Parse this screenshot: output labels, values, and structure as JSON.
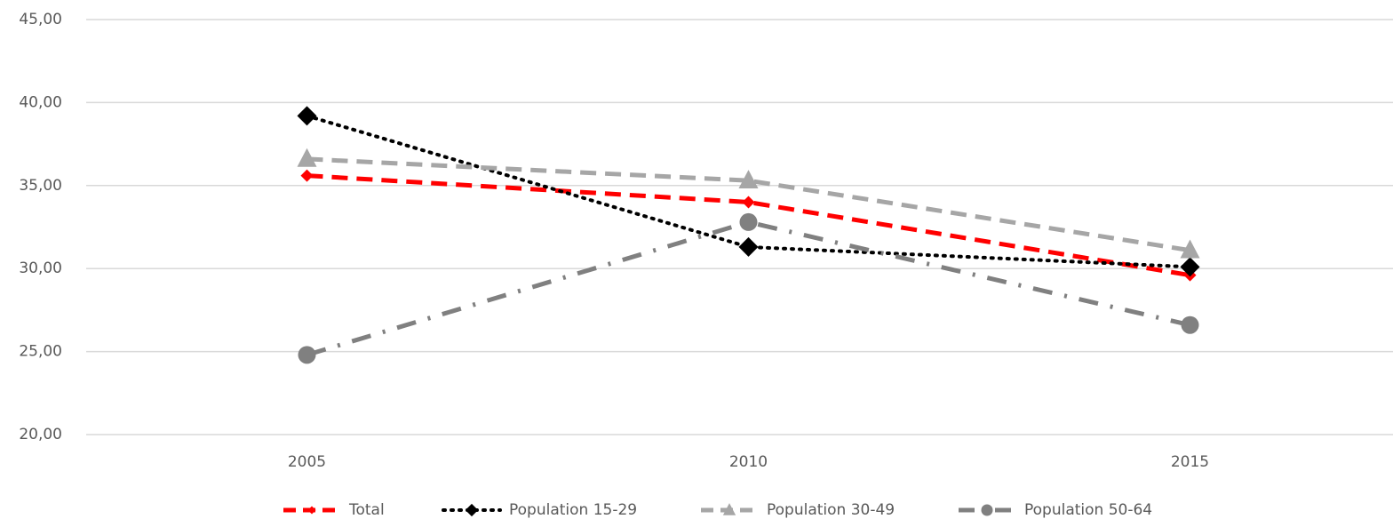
{
  "chart_data": {
    "type": "line",
    "categories": [
      "2005",
      "2010",
      "2015"
    ],
    "series": [
      {
        "name": "Total",
        "color": "#ff0000",
        "line_style": "dashed",
        "marker": "diamond",
        "values": [
          35.6,
          34.0,
          29.6
        ]
      },
      {
        "name": "Population 15-29",
        "color": "#000000",
        "line_style": "dotted",
        "marker": "diamond",
        "values": [
          39.2,
          31.3,
          30.1
        ]
      },
      {
        "name": "Population 30-49",
        "color": "#a6a6a6",
        "line_style": "dashed",
        "marker": "triangle",
        "values": [
          36.6,
          35.3,
          31.1
        ]
      },
      {
        "name": "Population 50-64",
        "color": "#808080",
        "line_style": "dash-dot",
        "marker": "circle",
        "values": [
          24.8,
          32.8,
          26.6
        ]
      }
    ],
    "ylim": [
      20,
      45
    ],
    "yticks": [
      {
        "value": 20,
        "label": "20,00"
      },
      {
        "value": 25,
        "label": "25,00"
      },
      {
        "value": 30,
        "label": "30,00"
      },
      {
        "value": 35,
        "label": "35,00"
      },
      {
        "value": 40,
        "label": "40,00"
      },
      {
        "value": 45,
        "label": "45,00"
      }
    ],
    "grid": true,
    "legend": "bottom"
  }
}
